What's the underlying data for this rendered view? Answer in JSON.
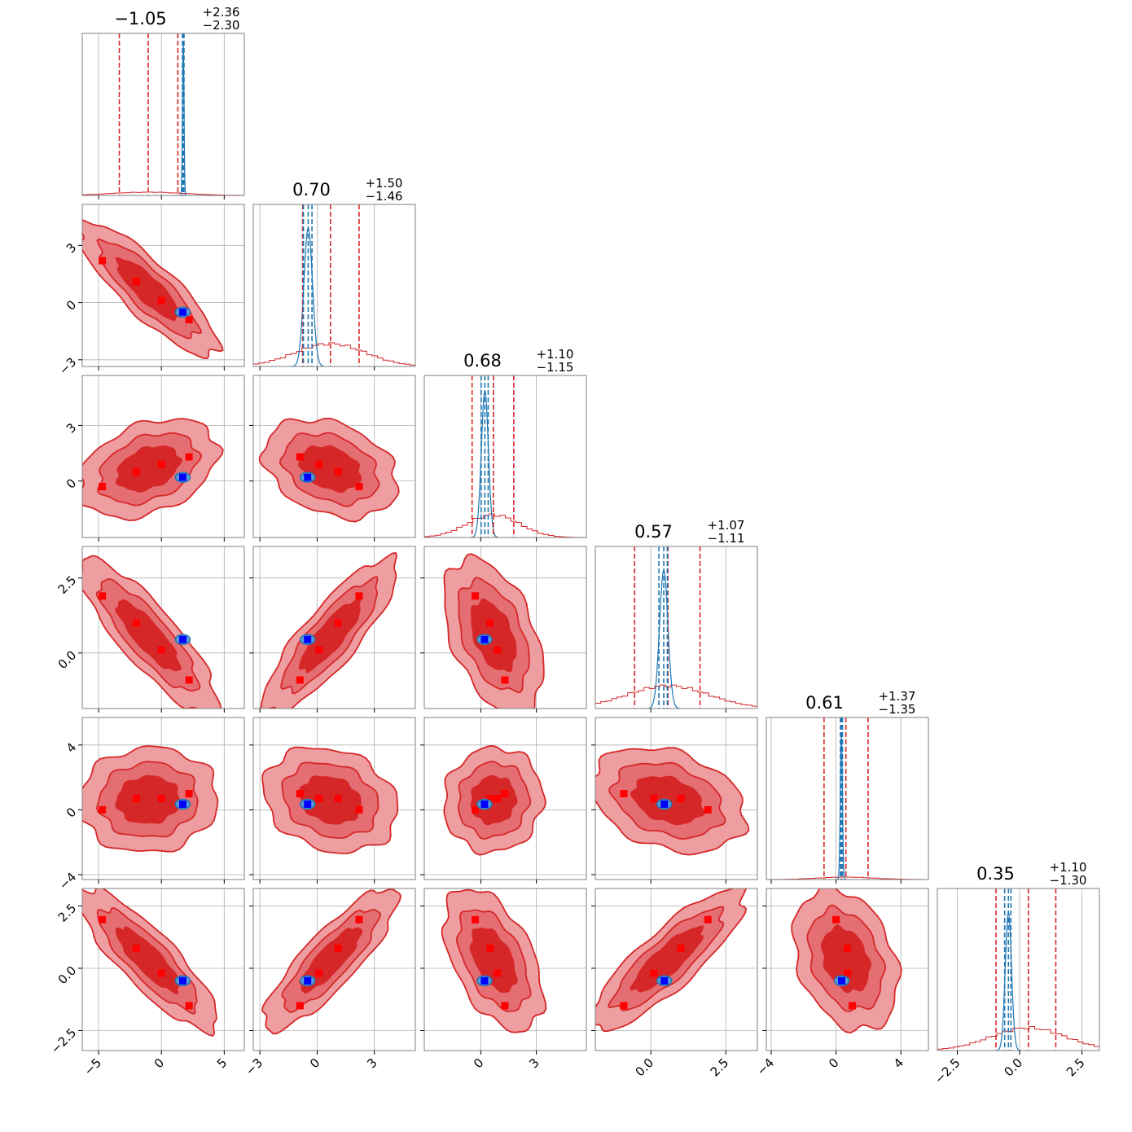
{
  "chart_data": {
    "type": "corner",
    "description_style": "triangular corner plot of 6 parameters; diagonal = 1D marginal histograms, lower triangle = 2D density contours",
    "colors": {
      "broad_posterior": "#d62728",
      "narrow_posterior": "#1f77b4",
      "true_markers": "#ff0000",
      "reference_markers": "#0000ff",
      "grid": "#b0b0b0"
    },
    "parameters": [
      {
        "index": 0,
        "title_value": "−1.05",
        "title_plus": "+2.36",
        "title_minus": "−2.30",
        "range": [
          -6.3,
          6.6
        ],
        "ticks": [
          -5,
          0,
          5
        ],
        "tick_labels": [
          "−5",
          "0",
          "5"
        ],
        "quantiles_red": [
          -3.35,
          -1.05,
          1.31
        ],
        "quantiles_blue": [
          1.68,
          1.74,
          1.8
        ]
      },
      {
        "index": 1,
        "title_value": "0.70",
        "title_plus": "+1.50",
        "title_minus": "−1.46",
        "range": [
          -3.35,
          5.15
        ],
        "ticks": [
          -3,
          0,
          3
        ],
        "tick_labels": [
          "−3",
          "0",
          "3"
        ],
        "quantiles_red": [
          -0.76,
          0.7,
          2.2
        ],
        "quantiles_blue": [
          -0.72,
          -0.47,
          -0.27
        ]
      },
      {
        "index": 2,
        "title_value": "0.68",
        "title_plus": "+1.10",
        "title_minus": "−1.15",
        "range": [
          -3.05,
          5.7
        ],
        "ticks": [
          0,
          3
        ],
        "tick_labels": [
          "0",
          "3"
        ],
        "quantiles_red": [
          -0.47,
          0.68,
          1.78
        ],
        "quantiles_blue": [
          0.02,
          0.22,
          0.4
        ]
      },
      {
        "index": 3,
        "title_value": "0.57",
        "title_plus": "+1.07",
        "title_minus": "−1.11",
        "range": [
          -1.85,
          3.55
        ],
        "ticks": [
          0,
          2.5
        ],
        "tick_labels": [
          "0.0",
          "2.5"
        ],
        "quantiles_red": [
          -0.54,
          0.57,
          1.64
        ],
        "quantiles_blue": [
          0.27,
          0.43,
          0.55
        ]
      },
      {
        "index": 4,
        "title_value": "0.61",
        "title_plus": "+1.37",
        "title_minus": "−1.35",
        "range": [
          -4.3,
          5.7
        ],
        "ticks": [
          -4,
          0,
          4
        ],
        "tick_labels": [
          "−4",
          "0",
          "4"
        ],
        "quantiles_red": [
          -0.74,
          0.61,
          1.98
        ],
        "quantiles_blue": [
          0.27,
          0.33,
          0.4
        ]
      },
      {
        "index": 5,
        "title_value": "0.35",
        "title_plus": "+1.10",
        "title_minus": "−1.30",
        "range": [
          -3.3,
          3.2
        ],
        "ticks": [
          -2.5,
          0,
          2.5
        ],
        "tick_labels": [
          "−2.5",
          "0.0",
          "2.5"
        ],
        "quantiles_red": [
          -0.95,
          0.35,
          1.45
        ],
        "quantiles_blue": [
          -0.6,
          -0.45,
          -0.35
        ]
      }
    ],
    "true_values_red": [
      [
        -4.7,
        2.2,
        -0.3,
        1.9,
        0.0,
        1.95
      ],
      [
        -2.0,
        1.1,
        0.5,
        1.0,
        0.7,
        0.8
      ],
      [
        0.0,
        0.1,
        0.9,
        0.1,
        0.7,
        -0.2
      ],
      [
        2.2,
        -0.9,
        1.3,
        -0.9,
        1.0,
        -1.5
      ]
    ],
    "reference_value_blue": [
      1.7,
      -0.5,
      0.2,
      0.45,
      0.35,
      -0.5
    ],
    "red_contour_widths_sigma": [
      0.5,
      1.0,
      1.5
    ],
    "blue_contour_sigma": [
      0.12,
      0.3,
      0.2,
      0.12,
      0.1,
      0.12
    ]
  }
}
